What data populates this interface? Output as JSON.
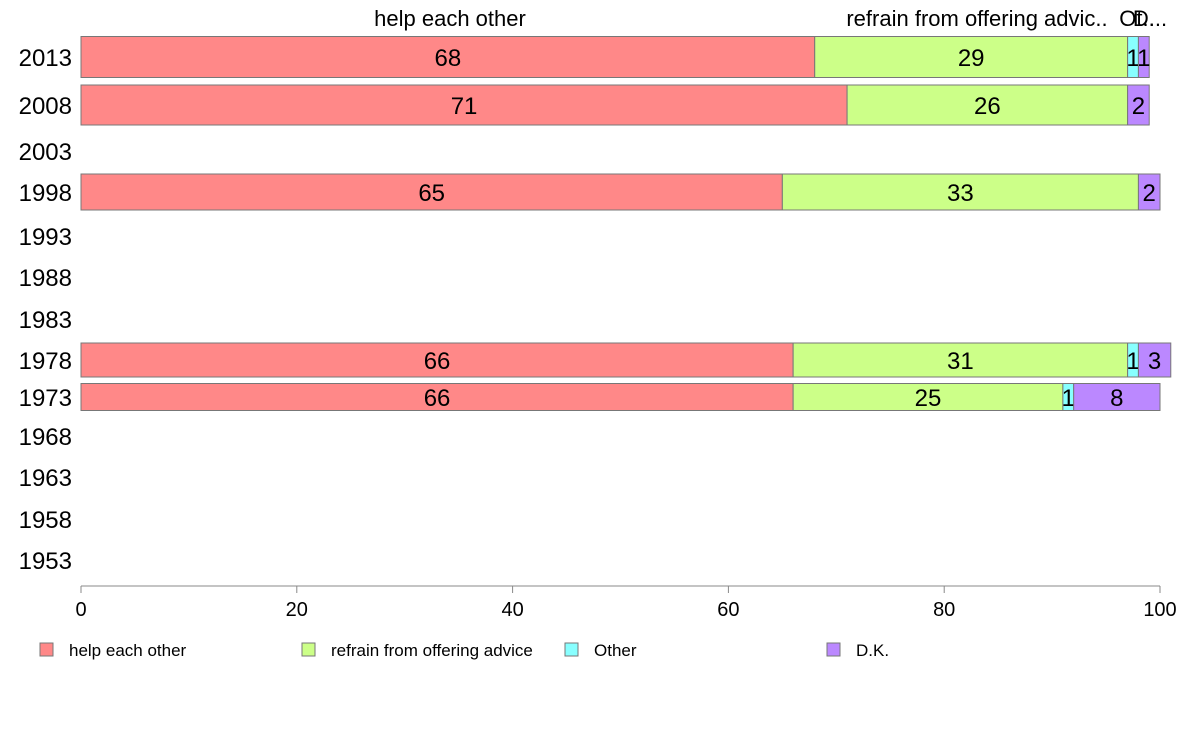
{
  "chart_data": {
    "type": "bar",
    "orientation": "horizontal",
    "stacked": true,
    "categories": [
      "2013",
      "2008",
      "2003",
      "1998",
      "1993",
      "1988",
      "1983",
      "1978",
      "1973",
      "1968",
      "1963",
      "1958",
      "1953"
    ],
    "series": [
      {
        "name": "help each other",
        "color": "#FF8888",
        "values": [
          68,
          71,
          null,
          65,
          null,
          null,
          null,
          66,
          66,
          null,
          null,
          null,
          null
        ]
      },
      {
        "name": "refrain from offering advice",
        "color": "#CCFF88",
        "values": [
          29,
          26,
          null,
          33,
          null,
          null,
          null,
          31,
          25,
          null,
          null,
          null,
          null
        ]
      },
      {
        "name": "Other",
        "color": "#88FFFF",
        "values": [
          1,
          0,
          null,
          0,
          null,
          null,
          null,
          1,
          1,
          null,
          null,
          null,
          null
        ]
      },
      {
        "name": "D.K.",
        "color": "#BB88FF",
        "values": [
          1,
          2,
          null,
          2,
          null,
          null,
          null,
          3,
          8,
          null,
          null,
          null,
          null
        ]
      }
    ],
    "top_labels": [
      "help each other",
      "refrain from offering advic..",
      "Ot..",
      "D..."
    ],
    "xlim": [
      0,
      100
    ],
    "xticks": [
      0,
      20,
      40,
      60,
      80,
      100
    ],
    "grid": false,
    "legend_position": "bottom"
  }
}
